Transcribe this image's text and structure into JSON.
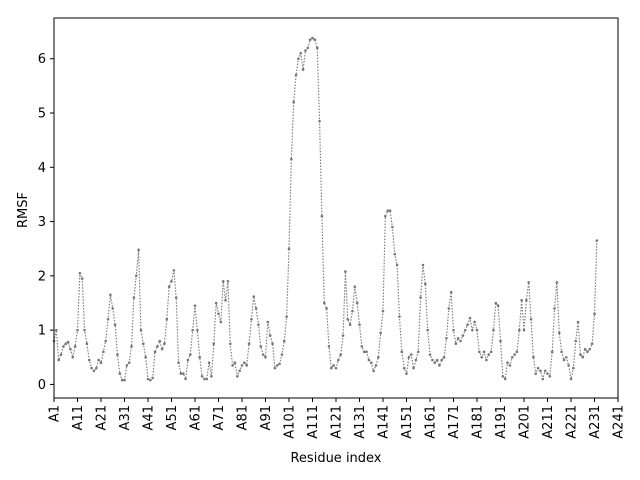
{
  "chart_data": {
    "type": "line",
    "xlabel": "Residue index",
    "ylabel": "RMSF",
    "xlim": [
      1,
      241
    ],
    "ylim": [
      -0.25,
      6.75
    ],
    "yticks": [
      0,
      1,
      2,
      3,
      4,
      5,
      6
    ],
    "xticks": [
      {
        "pos": 1,
        "label": "A1"
      },
      {
        "pos": 11,
        "label": "A11"
      },
      {
        "pos": 21,
        "label": "A21"
      },
      {
        "pos": 31,
        "label": "A31"
      },
      {
        "pos": 41,
        "label": "A41"
      },
      {
        "pos": 51,
        "label": "A51"
      },
      {
        "pos": 61,
        "label": "A61"
      },
      {
        "pos": 71,
        "label": "A71"
      },
      {
        "pos": 81,
        "label": "A81"
      },
      {
        "pos": 91,
        "label": "A91"
      },
      {
        "pos": 101,
        "label": "A101"
      },
      {
        "pos": 111,
        "label": "A111"
      },
      {
        "pos": 121,
        "label": "A121"
      },
      {
        "pos": 131,
        "label": "A131"
      },
      {
        "pos": 141,
        "label": "A141"
      },
      {
        "pos": 151,
        "label": "A151"
      },
      {
        "pos": 161,
        "label": "A161"
      },
      {
        "pos": 171,
        "label": "A171"
      },
      {
        "pos": 181,
        "label": "A181"
      },
      {
        "pos": 191,
        "label": "A191"
      },
      {
        "pos": 201,
        "label": "A201"
      },
      {
        "pos": 211,
        "label": "A211"
      },
      {
        "pos": 221,
        "label": "A221"
      },
      {
        "pos": 231,
        "label": "A231"
      },
      {
        "pos": 241,
        "label": "A241"
      }
    ],
    "grid": false,
    "line_style": "dotted",
    "series": [
      {
        "color": "#777777",
        "x_start": 1,
        "values": [
          0.8,
          1.0,
          0.45,
          0.55,
          0.7,
          0.75,
          0.78,
          0.65,
          0.5,
          0.7,
          1.0,
          2.05,
          1.95,
          1.0,
          0.75,
          0.45,
          0.3,
          0.25,
          0.3,
          0.45,
          0.4,
          0.6,
          0.8,
          1.2,
          1.65,
          1.4,
          1.1,
          0.55,
          0.2,
          0.08,
          0.08,
          0.35,
          0.4,
          0.7,
          1.6,
          2.0,
          2.48,
          1.0,
          0.75,
          0.5,
          0.1,
          0.08,
          0.12,
          0.6,
          0.7,
          0.8,
          0.65,
          0.75,
          1.2,
          1.8,
          1.9,
          2.1,
          1.6,
          0.4,
          0.2,
          0.2,
          0.1,
          0.45,
          0.55,
          1.0,
          1.45,
          1.0,
          0.5,
          0.15,
          0.1,
          0.1,
          0.4,
          0.15,
          0.75,
          1.5,
          1.3,
          1.15,
          1.9,
          1.55,
          1.9,
          0.75,
          0.35,
          0.4,
          0.15,
          0.25,
          0.35,
          0.4,
          0.35,
          0.75,
          1.2,
          1.62,
          1.4,
          1.1,
          0.7,
          0.55,
          0.5,
          1.15,
          0.9,
          0.75,
          0.3,
          0.35,
          0.38,
          0.55,
          0.8,
          1.25,
          2.5,
          4.15,
          5.2,
          5.7,
          6.0,
          6.1,
          5.8,
          6.15,
          6.2,
          6.35,
          6.38,
          6.35,
          6.2,
          4.85,
          3.1,
          1.5,
          1.4,
          0.7,
          0.3,
          0.35,
          0.3,
          0.45,
          0.55,
          0.9,
          2.08,
          1.2,
          1.1,
          1.35,
          1.8,
          1.5,
          1.1,
          0.7,
          0.6,
          0.6,
          0.45,
          0.4,
          0.25,
          0.35,
          0.5,
          0.95,
          1.35,
          3.1,
          3.2,
          3.2,
          2.9,
          2.4,
          2.2,
          1.25,
          0.6,
          0.3,
          0.2,
          0.5,
          0.55,
          0.3,
          0.45,
          0.6,
          1.6,
          2.2,
          1.85,
          1.0,
          0.55,
          0.45,
          0.4,
          0.45,
          0.35,
          0.45,
          0.5,
          0.85,
          1.4,
          1.7,
          1.0,
          0.75,
          0.85,
          0.8,
          0.9,
          1.0,
          1.1,
          1.22,
          1.0,
          1.15,
          1.0,
          0.6,
          0.5,
          0.6,
          0.45,
          0.55,
          0.6,
          1.0,
          1.5,
          1.45,
          0.8,
          0.15,
          0.1,
          0.4,
          0.35,
          0.5,
          0.55,
          0.6,
          1.0,
          1.55,
          1.0,
          1.55,
          1.88,
          1.2,
          0.5,
          0.2,
          0.3,
          0.25,
          0.1,
          0.25,
          0.2,
          0.15,
          0.6,
          1.4,
          1.88,
          0.95,
          0.6,
          0.45,
          0.5,
          0.35,
          0.1,
          0.3,
          0.8,
          1.15,
          0.55,
          0.5,
          0.65,
          0.6,
          0.65,
          0.75,
          1.3,
          2.65
        ]
      }
    ]
  }
}
